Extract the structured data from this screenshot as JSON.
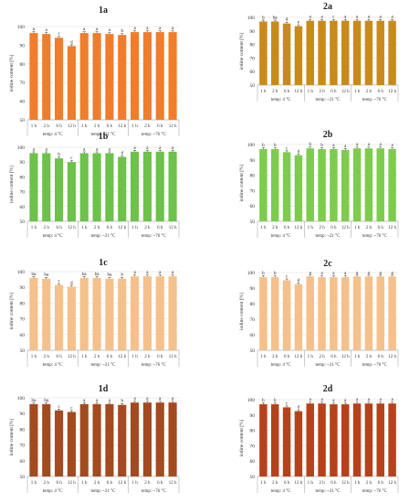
{
  "chart_data": [
    {
      "id": "1a",
      "type": "bar",
      "title": "1a",
      "ylabel": "iodine content [%]",
      "ylim": [
        50,
        100
      ],
      "yticks": [
        50,
        60,
        70,
        80,
        90,
        100
      ],
      "categories": [
        "1 h",
        "2 h",
        "6 h",
        "12 h",
        "1 h",
        "2 h",
        "6 h",
        "12 h",
        "1 h",
        "2 h",
        "6 h",
        "12 h"
      ],
      "groups": [
        "temp: 4 °C",
        "temp: ~21 °C",
        "temp: ~76 °C"
      ],
      "values": [
        96.5,
        96,
        94,
        89.5,
        96.5,
        96.5,
        96,
        95.5,
        97,
        97,
        97,
        97
      ],
      "letters": [
        "a",
        "a",
        "c",
        "d",
        "a",
        "a",
        "a",
        "b",
        "a",
        "a",
        "a",
        "a"
      ],
      "color": "#f07d2b"
    },
    {
      "id": "2a",
      "type": "bar",
      "title": "2a",
      "ylabel": "iodine content [%]",
      "ylim": [
        50,
        100
      ],
      "yticks": [
        50,
        60,
        70,
        80,
        90,
        100
      ],
      "categories": [
        "1 h",
        "2 h",
        "6 h",
        "12 h",
        "1 h",
        "2 h",
        "6 h",
        "12 h",
        "1 h",
        "2 h",
        "6 h",
        "12 h"
      ],
      "groups": [
        "temp: 4 °C",
        "temp: ~21 °C",
        "temp: ~76 °C"
      ],
      "values": [
        97,
        97,
        95.5,
        93.5,
        97.5,
        97.5,
        97.5,
        97.5,
        97.5,
        97.5,
        97.5,
        97.5
      ],
      "letters": [
        "b",
        "ba",
        "d",
        "e",
        "a",
        "a",
        "c",
        "a",
        "a",
        "a",
        "a",
        "a"
      ],
      "color": "#c98a1c"
    },
    {
      "id": "1b",
      "type": "bar",
      "title": "1b",
      "ylabel": "iodine content [%]",
      "ylim": [
        50,
        100
      ],
      "yticks": [
        50,
        60,
        70,
        80,
        90,
        100
      ],
      "categories": [
        "1 h",
        "2 h",
        "6 h",
        "12 h",
        "1 h",
        "2 h",
        "6 h",
        "12 h",
        "1 h",
        "2 h",
        "6 h",
        "12 h"
      ],
      "groups": [
        "temp: 4 °C",
        "temp: ~21 °C",
        "temp: ~76 °C"
      ],
      "values": [
        96,
        96,
        92.5,
        90,
        96,
        96,
        96,
        93.5,
        97,
        97,
        97,
        97
      ],
      "letters": [
        "a",
        "a",
        "b",
        "c",
        "a",
        "a",
        "a",
        "d",
        "a",
        "a",
        "a",
        "a"
      ],
      "color": "#6cc24a"
    },
    {
      "id": "2b",
      "type": "bar",
      "title": "2b",
      "ylabel": "iodine content [%]",
      "ylim": [
        50,
        100
      ],
      "yticks": [
        50,
        60,
        70,
        80,
        90,
        100
      ],
      "categories": [
        "1 h",
        "2 h",
        "6 h",
        "12 h",
        "1 h",
        "2 h",
        "6 h",
        "12 h",
        "1 h",
        "2 h",
        "6 h",
        "12 h"
      ],
      "groups": [
        "temp: 4 °C",
        "temp: ~21 °C",
        "temp: ~76 °C"
      ],
      "values": [
        97,
        97,
        95,
        93,
        97.5,
        97,
        97,
        96.5,
        97.5,
        97.5,
        97.5,
        97
      ],
      "letters": [
        "b",
        "b",
        "c",
        "d",
        "b",
        "b",
        "a",
        "a",
        "a",
        "a",
        "a",
        "a"
      ],
      "color": "#7dcc4e"
    },
    {
      "id": "1c",
      "type": "bar",
      "title": "1c",
      "ylabel": "iodine content [%]",
      "ylim": [
        50,
        100
      ],
      "yticks": [
        50,
        60,
        70,
        80,
        90,
        100
      ],
      "categories": [
        "1 h",
        "2 h",
        "6 h",
        "12 h",
        "1 h",
        "2 h",
        "6 h",
        "12 h",
        "1 h",
        "2 h",
        "6 h",
        "12 h"
      ],
      "groups": [
        "temp: 4 °C",
        "temp: ~21 °C",
        "temp: ~76 °C"
      ],
      "values": [
        96,
        95.5,
        91.5,
        90.5,
        96,
        96,
        95.5,
        95.5,
        97,
        97,
        97,
        97
      ],
      "letters": [
        "ba",
        "ba",
        "c",
        "d",
        "ba",
        "ba",
        "ba",
        "b",
        "a",
        "a",
        "a",
        "a"
      ],
      "color": "#f5c08a"
    },
    {
      "id": "2c",
      "type": "bar",
      "title": "2c",
      "ylabel": "iodine content [%]",
      "ylim": [
        50,
        100
      ],
      "yticks": [
        50,
        60,
        70,
        80,
        90,
        100
      ],
      "categories": [
        "1 h",
        "2 h",
        "6 h",
        "12 h",
        "1 h",
        "2 h",
        "6 h",
        "12 h",
        "1 h",
        "2 h",
        "6 h",
        "12 h"
      ],
      "groups": [
        "temp: 4 °C",
        "temp: ~21 °C",
        "temp: ~76 °C"
      ],
      "values": [
        97,
        97,
        95,
        92.5,
        97.5,
        97,
        97,
        97,
        97.5,
        97.5,
        97.5,
        97.5
      ],
      "letters": [
        "b",
        "b",
        "c",
        "d",
        "a",
        "a",
        "a",
        "a",
        "a",
        "a",
        "a",
        "a"
      ],
      "color": "#f5c08a"
    },
    {
      "id": "1d",
      "type": "bar",
      "title": "1d",
      "ylabel": "iodine content [%]",
      "ylim": [
        50,
        100
      ],
      "yticks": [
        50,
        60,
        70,
        80,
        90,
        100
      ],
      "categories": [
        "1 h",
        "2 h",
        "6 h",
        "12 h",
        "1 h",
        "2 h",
        "6 h",
        "12 h",
        "1 h",
        "2 h",
        "6 h",
        "12 h"
      ],
      "groups": [
        "temp: 4 °C",
        "temp: ~21 °C",
        "temp: ~76 °C"
      ],
      "values": [
        96,
        96,
        92,
        91,
        96,
        96,
        96,
        95.5,
        97,
        97,
        97,
        97
      ],
      "letters": [
        "ba",
        "ba",
        "c",
        "c",
        "a",
        "a",
        "a",
        "b",
        "a",
        "a",
        "a",
        "a"
      ],
      "color": "#a34a1f"
    },
    {
      "id": "2d",
      "type": "bar",
      "title": "2d",
      "ylabel": "iodine content [%]",
      "ylim": [
        50,
        100
      ],
      "yticks": [
        50,
        60,
        70,
        80,
        90,
        100
      ],
      "categories": [
        "1 h",
        "2 h",
        "6 h",
        "12 h",
        "1 h",
        "2 h",
        "6 h",
        "12 h",
        "1 h",
        "2 h",
        "6 h",
        "12 h"
      ],
      "groups": [
        "temp: 4 °C",
        "temp: ~21 °C",
        "temp: ~76 °C"
      ],
      "values": [
        97,
        97,
        95,
        92.5,
        97.5,
        97.5,
        97,
        97,
        97.5,
        97.5,
        97.5,
        97.5
      ],
      "letters": [
        "b",
        "b",
        "c",
        "d",
        "a",
        "a",
        "a",
        "a",
        "a",
        "a",
        "a",
        "a"
      ],
      "color": "#b5421a"
    }
  ]
}
